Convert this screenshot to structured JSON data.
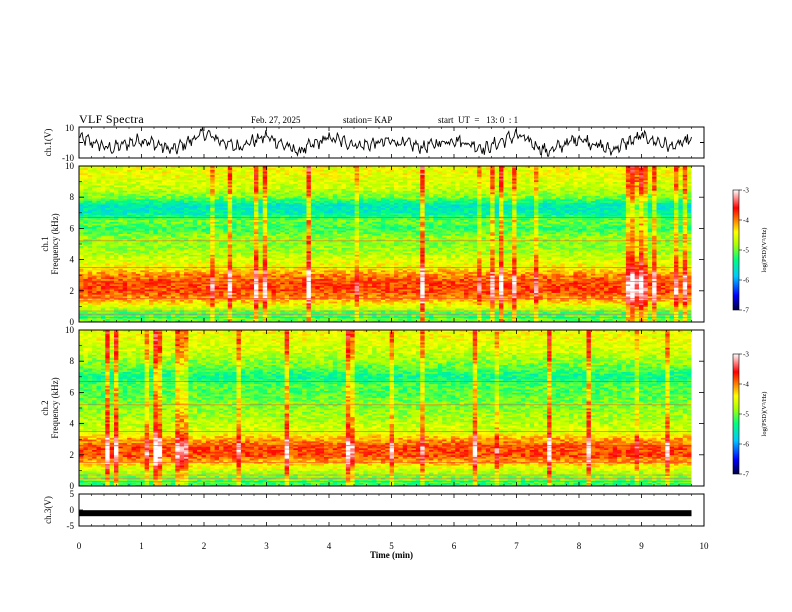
{
  "header": {
    "title": "VLF Spectra",
    "date": "Feb. 27, 2025",
    "station": "station= KAP",
    "start": "start  UT  =   13: 0  : 1"
  },
  "chart_data": [
    {
      "type": "line",
      "panel": "ch1-waveform",
      "ylabel": "ch.1(V)",
      "ylim": [
        -10,
        10
      ],
      "y_tick_labels": [
        "10",
        "-10"
      ],
      "xlim": [
        0,
        10
      ],
      "data_extent_min": 9.8,
      "description_values": {
        "x_min": [
          0,
          0.5,
          1.0,
          1.5,
          2.0,
          2.5,
          3.0,
          3.5,
          4.0,
          4.5,
          5.0,
          5.5,
          6.0,
          6.5,
          7.0,
          7.5,
          8.0,
          8.5,
          9.0,
          9.5,
          9.8
        ],
        "y_V": [
          3,
          -4,
          2,
          -5,
          6,
          -3,
          4,
          -6,
          3,
          -2,
          1,
          -3,
          2,
          -4,
          5,
          -6,
          3,
          -5,
          4,
          -3,
          2
        ]
      },
      "series_color": "#000000"
    },
    {
      "type": "heatmap",
      "panel": "ch1-spectrogram",
      "ylabel": "Frequency  (kHz)",
      "channel_label": "ch.1",
      "ylim": [
        0,
        10
      ],
      "y_tick_labels": [
        "0",
        "2",
        "4",
        "6",
        "8",
        "10"
      ],
      "xlim": [
        0,
        10
      ],
      "data_extent_min": 9.8,
      "colorbar": {
        "label": "log(PSD)(V²/Hz)",
        "range": [
          -7,
          -3
        ],
        "tick_labels": [
          "-7",
          "-6",
          "-5",
          "-4",
          "-3"
        ]
      },
      "profile_by_freq_kHz": {
        "freq": [
          0.2,
          0.5,
          1.0,
          1.5,
          2.0,
          2.5,
          3.0,
          3.5,
          4.0,
          4.5,
          5.0,
          5.5,
          6.0,
          6.5,
          7.0,
          7.5,
          8.0,
          8.5,
          9.0,
          9.5,
          10.0
        ],
        "log_psd": [
          -5.0,
          -5.2,
          -4.6,
          -4.1,
          -3.8,
          -3.8,
          -4.0,
          -4.4,
          -4.6,
          -4.8,
          -4.9,
          -4.9,
          -5.2,
          -5.0,
          -5.5,
          -5.6,
          -5.0,
          -4.7,
          -4.6,
          -4.5,
          -4.5
        ]
      }
    },
    {
      "type": "heatmap",
      "panel": "ch2-spectrogram",
      "ylabel": "Frequency  (kHz)",
      "channel_label": "ch.2",
      "ylim": [
        0,
        10
      ],
      "y_tick_labels": [
        "0",
        "2",
        "4",
        "6",
        "8",
        "10"
      ],
      "xlim": [
        0,
        10
      ],
      "data_extent_min": 9.8,
      "colorbar": {
        "label": "log(PSD)(V²/Hz)",
        "range": [
          -7,
          -3
        ],
        "tick_labels": [
          "-7",
          "-6",
          "-5",
          "-4",
          "-3"
        ]
      },
      "profile_by_freq_kHz": {
        "freq": [
          0.2,
          0.5,
          1.0,
          1.5,
          2.0,
          2.5,
          3.0,
          3.5,
          4.0,
          4.5,
          5.0,
          5.5,
          6.0,
          6.5,
          7.0,
          7.5,
          8.0,
          8.5,
          9.0,
          9.5,
          10.0
        ],
        "log_psd": [
          -5.2,
          -5.0,
          -4.7,
          -4.2,
          -3.8,
          -3.8,
          -4.1,
          -4.6,
          -4.7,
          -4.8,
          -4.9,
          -5.0,
          -5.1,
          -5.1,
          -5.4,
          -5.1,
          -4.9,
          -4.7,
          -4.6,
          -4.5,
          -4.5
        ]
      }
    },
    {
      "type": "line",
      "panel": "ch3-waveform",
      "ylabel": "ch.3(V)",
      "ylim": [
        -5,
        5
      ],
      "y_tick_labels": [
        "5",
        "0",
        "-5"
      ],
      "xlim": [
        0,
        10
      ],
      "data_extent_min": 9.8,
      "constant_value_V": -1,
      "series_color": "#000000"
    }
  ],
  "x_axis": {
    "label": "Time  (min)",
    "tick_labels": [
      "0",
      "1",
      "2",
      "3",
      "4",
      "5",
      "6",
      "7",
      "8",
      "9",
      "10"
    ]
  },
  "colors": {
    "colormap": [
      "#000080",
      "#0000ff",
      "#00a0ff",
      "#00ffff",
      "#40ff40",
      "#ffff00",
      "#ff8000",
      "#ff0000",
      "#ff8080",
      "#ffffff"
    ]
  }
}
